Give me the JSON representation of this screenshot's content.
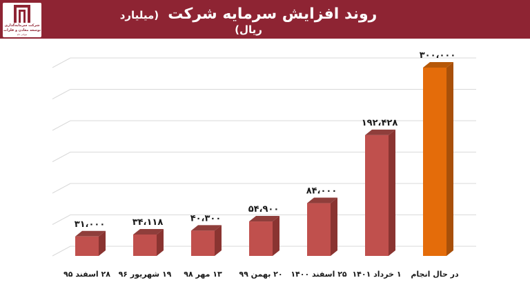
{
  "header": {
    "title": "روند افزایش سرمایه شرکت",
    "subtitle": "(میلیارد ریال)",
    "logo_line1": "شرکت سرمایه‌گذاری",
    "logo_line2": "توسعه معادن و فلزات",
    "logo_line3": "سهامی عام",
    "color": "#8e2433"
  },
  "chart_data": {
    "type": "bar",
    "three_d": true,
    "grid": true,
    "legend": "none",
    "categories": [
      "۲۸ اسفند ۹۵",
      "۱۹ شهریور ۹۶",
      "۱۳ مهر ۹۸",
      "۲۰ بهمن ۹۹",
      "۲۵ اسفند ۱۴۰۰",
      "۱ خرداد ۱۴۰۱",
      "در حال انجام"
    ],
    "values": [
      31000,
      34118,
      40300,
      54900,
      84000,
      192428,
      300000
    ],
    "value_labels": [
      "۳۱،۰۰۰",
      "۳۴،۱۱۸",
      "۴۰،۳۰۰",
      "۵۴،۹۰۰",
      "۸۴،۰۰۰",
      "۱۹۲،۴۲۸",
      "۳۰۰،۰۰۰"
    ],
    "ylim": [
      0,
      300000
    ],
    "colors": [
      "#c0504d",
      "#c0504d",
      "#c0504d",
      "#c0504d",
      "#c0504d",
      "#c0504d",
      "#e46c0a"
    ],
    "side_colors": [
      "#8a3431",
      "#8a3431",
      "#8a3431",
      "#8a3431",
      "#8a3431",
      "#8a3431",
      "#a8500a"
    ],
    "top_colors": [
      "#8f3e3b",
      "#8f3e3b",
      "#8f3e3b",
      "#8f3e3b",
      "#8f3e3b",
      "#8f3e3b",
      "#b65808"
    ],
    "gridline_color": "#d9d9d9"
  }
}
